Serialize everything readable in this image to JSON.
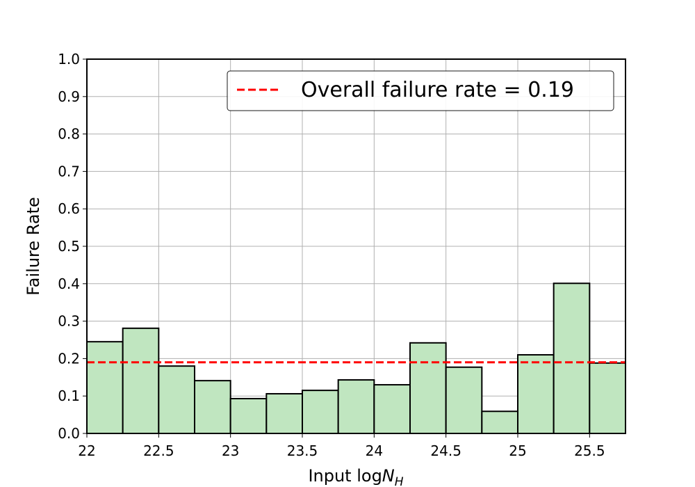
{
  "chart_data": {
    "type": "histogram",
    "bins": [
      22,
      22.25,
      22.5,
      22.75,
      23,
      23.25,
      23.5,
      23.75,
      24,
      24.25,
      24.5,
      24.75,
      25,
      25.25,
      25.5,
      25.75
    ],
    "values": [
      0.245,
      0.281,
      0.18,
      0.141,
      0.093,
      0.106,
      0.115,
      0.143,
      0.13,
      0.242,
      0.177,
      0.059,
      0.21,
      0.401,
      0.188
    ],
    "color": "#c0e6c0",
    "edgecolor": "#000000",
    "hline": {
      "value": 0.19,
      "label": "Overall failure rate = 0.19",
      "color": "#ff0000"
    },
    "xlabel": [
      "Input log",
      "N",
      "H"
    ],
    "ylabel": "Failure Rate",
    "xlim": [
      22,
      25.75
    ],
    "ylim": [
      0,
      1.0
    ],
    "xticks": [
      22,
      22.5,
      23,
      23.5,
      24,
      24.5,
      25,
      25.5
    ],
    "yticks": [
      {
        "value": 0,
        "label": "0.0"
      },
      0.1,
      0.2,
      0.3,
      0.4,
      0.5,
      0.6,
      0.7,
      0.8,
      0.9,
      {
        "value": 1,
        "label": "1.0"
      }
    ],
    "grid": true,
    "legend": "upper right"
  }
}
